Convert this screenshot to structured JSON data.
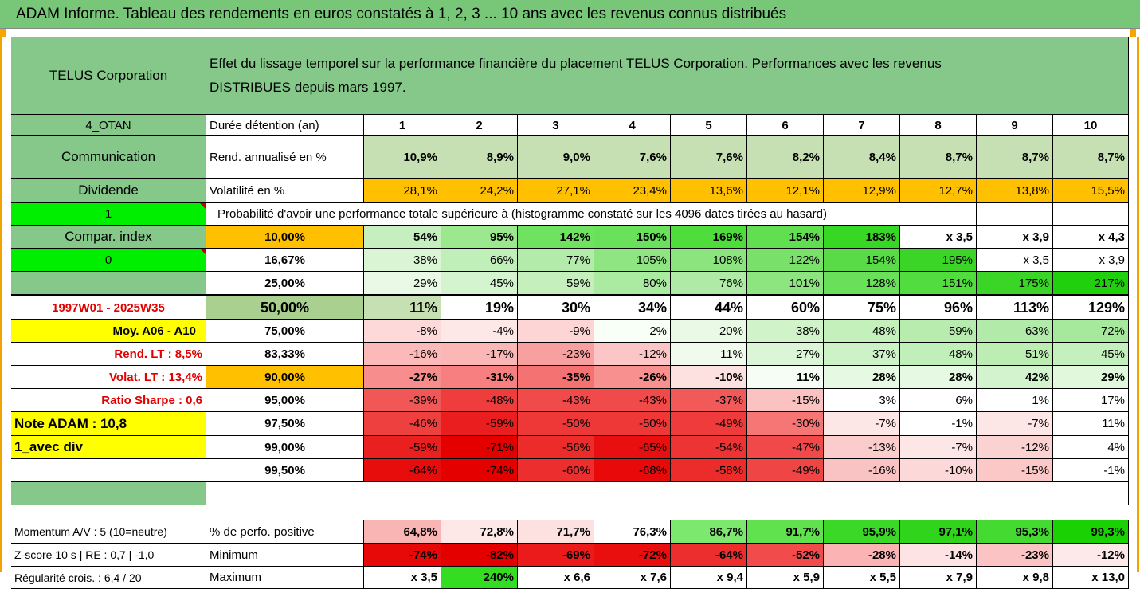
{
  "title": "ADAM Informe. Tableau des rendements en euros constatés à 1, 2, 3 ... 10 ans avec les revenus connus distribués",
  "company": "TELUS Corporation",
  "description_line1": "Effet du lissage temporel sur la performance financière du placement TELUS Corporation. Performances avec les revenus",
  "description_line2": "DISTRIBUES depuis mars 1997.",
  "colors": {
    "header_green": "#78c678",
    "label_green": "#85c88a",
    "bright_green": "#00ee00",
    "orange": "#ffc000",
    "yellow": "#ffff00",
    "red_text": "#e00000"
  },
  "left": {
    "code": "4_OTAN",
    "sector": "Communication",
    "div_label": "Dividende",
    "flag1": "1",
    "compar": "Compar. index",
    "flag0": "0",
    "period": "1997W01 - 2025W35",
    "moy": "Moy. A06 - A10",
    "rend_lt": "Rend. LT :   8,5%",
    "volat_lt": "Volat. LT :   13,4%",
    "sharpe": "Ratio Sharpe :   0,6",
    "note": "Note ADAM : 10,8",
    "mode": "1_avec div",
    "momentum": "Momentum A/V : 5 (10=neutre)",
    "zscore": "Z-score 10 s  | RE : 0,7 | -1,0",
    "regularite": "Régularité crois. : 6,4 / 20"
  },
  "labels": {
    "duree": "Durée détention (an)",
    "rend": "Rend. annualisé en %",
    "vol": "Volatilité en %",
    "proba": "Probabilité d'avoir une performance totale supérieure à (histogramme constaté sur les 4096 dates tirées au hasard)",
    "perf_pos": "% de perfo. positive",
    "minimum": "Minimum",
    "maximum": "Maximum"
  },
  "years": [
    "1",
    "2",
    "3",
    "4",
    "5",
    "6",
    "7",
    "8",
    "9",
    "10"
  ],
  "rend": [
    "10,9%",
    "8,9%",
    "9,0%",
    "7,6%",
    "7,6%",
    "8,2%",
    "8,4%",
    "8,7%",
    "8,7%",
    "8,7%"
  ],
  "vol": [
    "28,1%",
    "24,2%",
    "27,1%",
    "23,4%",
    "13,6%",
    "12,1%",
    "12,9%",
    "12,7%",
    "13,8%",
    "15,5%"
  ],
  "prob_rows": [
    {
      "p": "10,00%",
      "v": [
        "54%",
        "95%",
        "142%",
        "150%",
        "169%",
        "154%",
        "183%",
        "x 3,5",
        "x 3,9",
        "x 4,3"
      ]
    },
    {
      "p": "16,67%",
      "v": [
        "38%",
        "66%",
        "77%",
        "105%",
        "108%",
        "122%",
        "154%",
        "195%",
        "x 3,5",
        "x 3,9"
      ]
    },
    {
      "p": "25,00%",
      "v": [
        "29%",
        "45%",
        "59%",
        "80%",
        "76%",
        "101%",
        "128%",
        "151%",
        "175%",
        "217%"
      ]
    },
    {
      "p": "50,00%",
      "v": [
        "11%",
        "19%",
        "30%",
        "34%",
        "44%",
        "60%",
        "75%",
        "96%",
        "113%",
        "129%"
      ]
    },
    {
      "p": "75,00%",
      "v": [
        "-8%",
        "-4%",
        "-9%",
        "2%",
        "20%",
        "38%",
        "48%",
        "59%",
        "63%",
        "72%"
      ]
    },
    {
      "p": "83,33%",
      "v": [
        "-16%",
        "-17%",
        "-23%",
        "-12%",
        "11%",
        "27%",
        "37%",
        "48%",
        "51%",
        "45%"
      ]
    },
    {
      "p": "90,00%",
      "v": [
        "-27%",
        "-31%",
        "-35%",
        "-26%",
        "-10%",
        "11%",
        "28%",
        "28%",
        "42%",
        "29%"
      ]
    },
    {
      "p": "95,00%",
      "v": [
        "-39%",
        "-48%",
        "-43%",
        "-43%",
        "-37%",
        "-15%",
        "3%",
        "6%",
        "1%",
        "17%"
      ]
    },
    {
      "p": "97,50%",
      "v": [
        "-46%",
        "-59%",
        "-50%",
        "-50%",
        "-49%",
        "-30%",
        "-7%",
        "-1%",
        "-7%",
        "11%"
      ]
    },
    {
      "p": "99,00%",
      "v": [
        "-59%",
        "-71%",
        "-56%",
        "-65%",
        "-54%",
        "-47%",
        "-13%",
        "-7%",
        "-12%",
        "4%"
      ]
    },
    {
      "p": "99,50%",
      "v": [
        "-64%",
        "-74%",
        "-60%",
        "-68%",
        "-58%",
        "-49%",
        "-16%",
        "-10%",
        "-15%",
        "-1%"
      ]
    }
  ],
  "perf_pos": [
    "64,8%",
    "72,8%",
    "71,7%",
    "76,3%",
    "86,7%",
    "91,7%",
    "95,9%",
    "97,1%",
    "95,3%",
    "99,3%"
  ],
  "minimum": [
    "-74%",
    "-82%",
    "-69%",
    "-72%",
    "-64%",
    "-52%",
    "-28%",
    "-14%",
    "-23%",
    "-12%"
  ],
  "maximum": [
    "x 3,5",
    "240%",
    "x 6,6",
    "x 7,6",
    "x 9,4",
    "x 5,9",
    "x 5,5",
    "x 7,9",
    "x 9,8",
    "x 13,0"
  ],
  "fills": {
    "rend": [
      "#c6e0b4",
      "#c6e0b4",
      "#c6e0b4",
      "#c6e0b4",
      "#c6e0b4",
      "#c6e0b4",
      "#c6e0b4",
      "#c6e0b4",
      "#c6e0b4",
      "#c6e0b4"
    ],
    "vol": [
      "#ffc000",
      "#ffc000",
      "#ffc000",
      "#ffc000",
      "#ffc000",
      "#ffc000",
      "#ffc000",
      "#ffc000",
      "#ffc000",
      "#ffc000"
    ],
    "prob": [
      [
        "#c6efc0",
        "#9be88f",
        "#6fe35f",
        "#6ae15a",
        "#4fdd3c",
        "#62df50",
        "#37d823",
        "#ffffff",
        "#ffffff",
        "#ffffff"
      ],
      [
        "#d9f5d4",
        "#c0efb9",
        "#b3ecaa",
        "#8fe582",
        "#8ce47e",
        "#79e06a",
        "#59db47",
        "#3ad526",
        "#ffffff",
        "#ffffff"
      ],
      [
        "#e9f9e5",
        "#d3f4ce",
        "#c5f0be",
        "#aaeaa1",
        "#afeba6",
        "#8ce57f",
        "#6ae05a",
        "#52dc40",
        "#3ad526",
        "#21d00d"
      ],
      [
        "#c6e0b4",
        "#ffffff",
        "#ffffff",
        "#ffffff",
        "#ffffff",
        "#ffffff",
        "#ffffff",
        "#ffffff",
        "#ffffff",
        "#ffffff"
      ],
      [
        "#fdd9d9",
        "#fee7e7",
        "#fdd5d5",
        "#f8fff6",
        "#e9f9e6",
        "#d0f3ca",
        "#c4f0bc",
        "#b7ecae",
        "#b2eba9",
        "#a7e99c"
      ],
      [
        "#fbb9b9",
        "#fbb6b6",
        "#f89f9f",
        "#fcc6c6",
        "#f0fbee",
        "#dbf6d7",
        "#cdf2c7",
        "#c1efb9",
        "#bcedb3",
        "#c4f0bd"
      ],
      [
        "#f88d8d",
        "#f77f7f",
        "#f47272",
        "#f89090",
        "#fde0e0",
        "#f6fdf5",
        "#e6f9e2",
        "#e6f9e2",
        "#d2f3cd",
        "#e1f8dd"
      ],
      [
        "#f25757",
        "#ef3c3c",
        "#f14a4a",
        "#f14a4a",
        "#f25a5a",
        "#fbc2c2",
        "#ffffff",
        "#ffffff",
        "#ffffff",
        "#ffffff"
      ],
      [
        "#ef4040",
        "#ea1e1e",
        "#ee3838",
        "#ee3838",
        "#ef3b3b",
        "#f67575",
        "#fde6e6",
        "#ffffff",
        "#fde6e6",
        "#ffffff"
      ],
      [
        "#ea1f1f",
        "#e50000",
        "#ec2b2b",
        "#e70f0f",
        "#ed3333",
        "#f14949",
        "#fbcccc",
        "#fde6e6",
        "#fbd2d2",
        "#ffffff"
      ],
      [
        "#e70d0d",
        "#e50000",
        "#ec2e2e",
        "#e80a0a",
        "#ec2b2b",
        "#f04545",
        "#fac3c3",
        "#fcd8d8",
        "#fbc7c7",
        "#ffffff"
      ]
    ],
    "perf_pos": [
      "#f9b4b4",
      "#fde7e7",
      "#fde1e1",
      "#ffffff",
      "#7de86e",
      "#5fe24e",
      "#3cd828",
      "#2fd41b",
      "#44da31",
      "#1ad104"
    ],
    "minimum": [
      "#e70808",
      "#e50000",
      "#eb1b1b",
      "#e90f0f",
      "#ed2e2e",
      "#f14b4b",
      "#fbb3b3",
      "#fde3e3",
      "#fbc3c3",
      "#fde9e9"
    ],
    "maximum": [
      "#ffffff",
      "#33dd22",
      "#ffffff",
      "#ffffff",
      "#ffffff",
      "#ffffff",
      "#ffffff",
      "#ffffff",
      "#ffffff",
      "#ffffff"
    ]
  }
}
